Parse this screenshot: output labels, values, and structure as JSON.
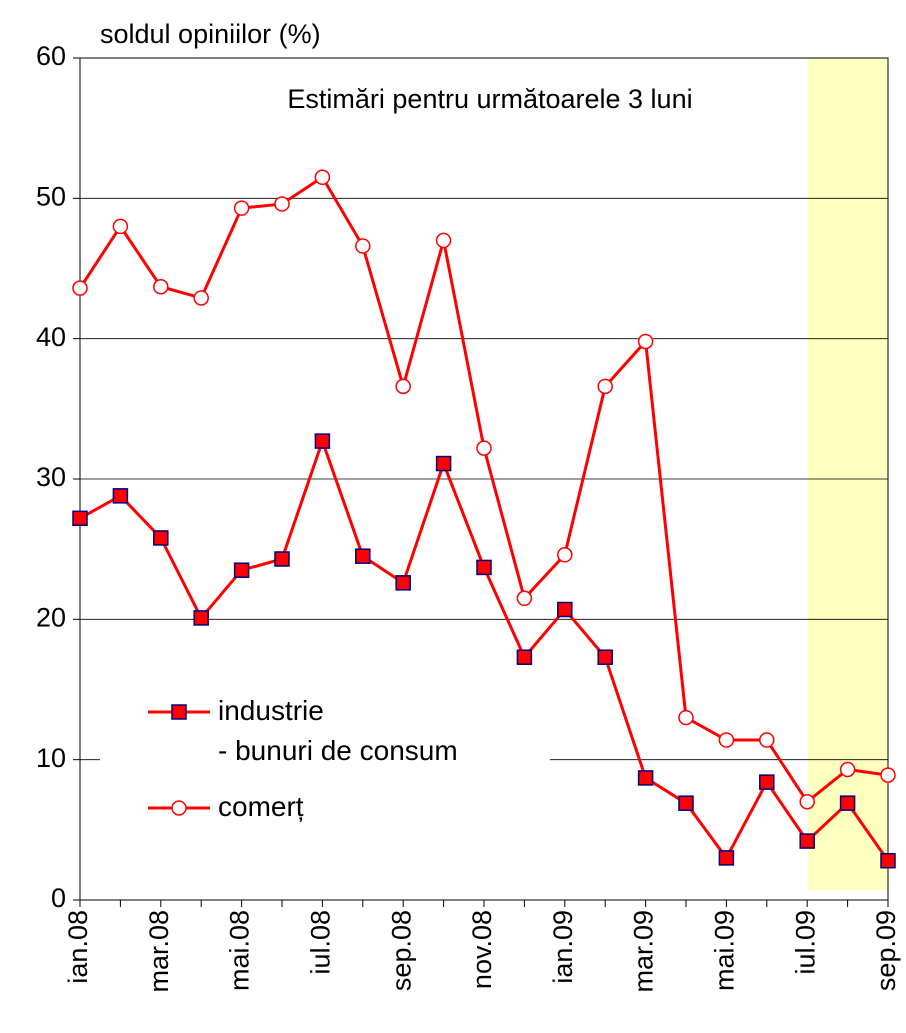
{
  "chart_data": {
    "type": "line",
    "title": "Estimări pentru următoarele 3 luni",
    "y_label": "soldul opiniilor (%)",
    "categories": [
      "ian.08",
      null,
      "mar.08",
      null,
      "mai.08",
      null,
      "iul.08",
      null,
      "sep.08",
      null,
      "nov.08",
      null,
      "ian.09",
      null,
      "mar.09",
      null,
      "mai.09",
      null,
      "iul.09",
      null,
      "sep.09"
    ],
    "series": [
      {
        "name": "industrie\n- bunuri de consum",
        "color": "#ff0000",
        "marker": "square",
        "values": [
          27.2,
          28.8,
          25.8,
          20.1,
          23.5,
          24.3,
          32.7,
          24.5,
          22.6,
          31.1,
          23.7,
          17.3,
          20.7,
          17.3,
          8.7,
          6.9,
          3.0,
          8.4,
          4.2,
          6.9,
          2.8
        ]
      },
      {
        "name": "comerț",
        "color": "#ff0000",
        "marker": "circle",
        "values": [
          43.6,
          48.0,
          43.7,
          42.9,
          49.3,
          49.6,
          51.5,
          46.6,
          36.6,
          47.0,
          32.2,
          21.5,
          24.6,
          36.6,
          39.8,
          13.0,
          11.4,
          11.4,
          7.0,
          9.3,
          8.9
        ]
      }
    ],
    "ylim": [
      0,
      60
    ],
    "yticks": [
      0,
      10,
      20,
      30,
      40,
      50,
      60
    ],
    "grid": true,
    "legend": "lower left"
  }
}
